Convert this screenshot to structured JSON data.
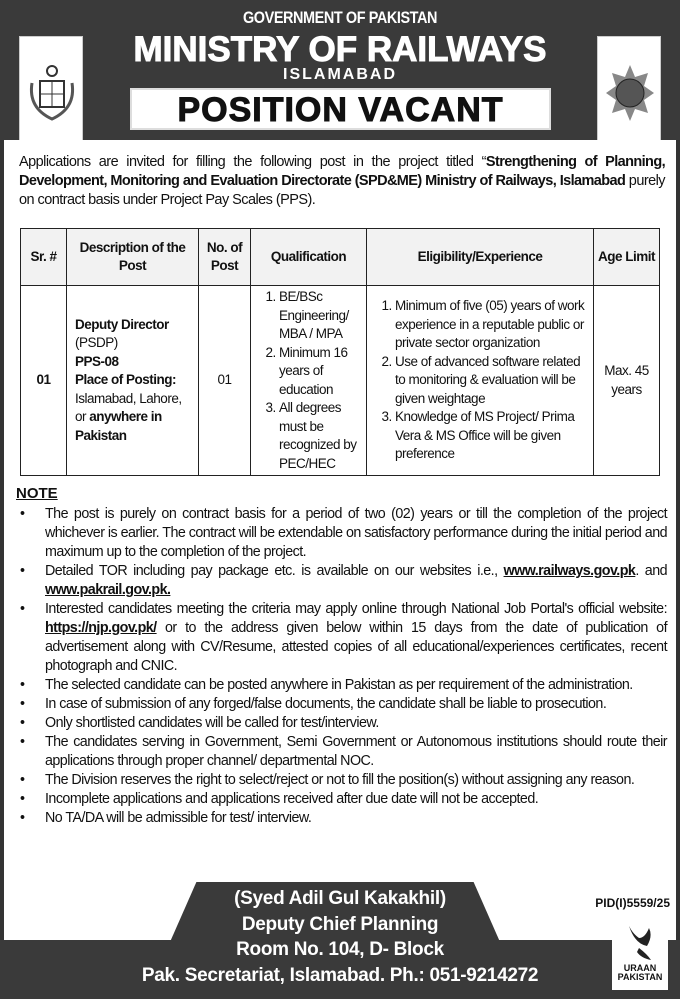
{
  "header": {
    "gov": "GOVERNMENT OF PAKISTAN",
    "ministry": "MINISTRY OF RAILWAYS",
    "city": "ISLAMABAD",
    "banner": "POSITION VACANT"
  },
  "intro": {
    "pre": "Applications are invited for filling the following post in the project titled “",
    "bold": "Strengthening of Planning, Development, Monitoring and Evaluation Directorate (SPD&ME) Ministry of Railways, Islamabad",
    "post": " purely on contract basis under Project Pay Scales (PPS)."
  },
  "table": {
    "headers": [
      "Sr. #",
      "Description of the Post",
      "No. of Post",
      "Qualification",
      "Eligibility/Experience",
      "Age Limit"
    ],
    "row": {
      "sr": "01",
      "desc": {
        "title": "Deputy Director",
        "sub": "(PSDP)",
        "pps": "PPS-08",
        "place_label": "Place of Posting:",
        "place": "Islamabad, Lahore, or",
        "anywhere": "anywhere in Pakistan"
      },
      "count": "01",
      "qualification": [
        "BE/BSc Engineering/ MBA / MPA",
        "Minimum 16 years of education",
        "All degrees must be recognized by PEC/HEC"
      ],
      "eligibility": [
        "Minimum of five (05) years of work experience in a reputable public or private sector organization",
        "Use of advanced software related to monitoring & evaluation will be given weightage",
        "Knowledge of MS Project/ Prima Vera & MS Office will be given preference"
      ],
      "age": "Max. 45 years"
    }
  },
  "notes": {
    "title": "NOTE",
    "items": [
      {
        "text": "The post is purely on contract basis for a period of two (02) years or till the completion of the project whichever is earlier. The contract will be extendable on satisfactory performance during the initial period and maximum up to the completion of the project."
      },
      {
        "pre": "Detailed TOR including pay package etc. is available on our websites i.e., ",
        "link1": "www.railways.gov.pk",
        "mid": ". and ",
        "link2": "www.pakrail.gov.pk."
      },
      {
        "pre": "Interested candidates meeting the criteria may apply online through National Job Portal's official website: ",
        "link1": "https://njp.gov.pk/",
        "post": " or to the address given below within 15 days from the date of publication of advertisement along with CV/Resume, attested copies of all educational/experiences certificates, recent photograph and CNIC."
      },
      {
        "text": "The selected candidate can be posted anywhere in Pakistan as per requirement of the administration."
      },
      {
        "text": "In case of submission of any forged/false documents, the candidate shall be liable to prosecution."
      },
      {
        "text": "Only shortlisted candidates will be called for test/interview."
      },
      {
        "text": "The candidates serving in Government, Semi Government or Autonomous institutions should route their applications through proper channel/ departmental NOC."
      },
      {
        "text": "The Division reserves the right to select/reject or not to fill the position(s) without assigning any reason."
      },
      {
        "text": "Incomplete applications and applications received after due date will not be accepted."
      },
      {
        "text": "No TA/DA will be admissible for test/ interview."
      }
    ]
  },
  "footer": {
    "name": "(Syed Adil Gul Kakakhil)",
    "designation": "Deputy Chief Planning",
    "room": "Room No. 104, D- Block",
    "address": "Pak. Secretariat, Islamabad. Ph.: 051-9214272",
    "pid": "PID(I)5559/25",
    "uraan": "URAAN PAKISTAN"
  }
}
